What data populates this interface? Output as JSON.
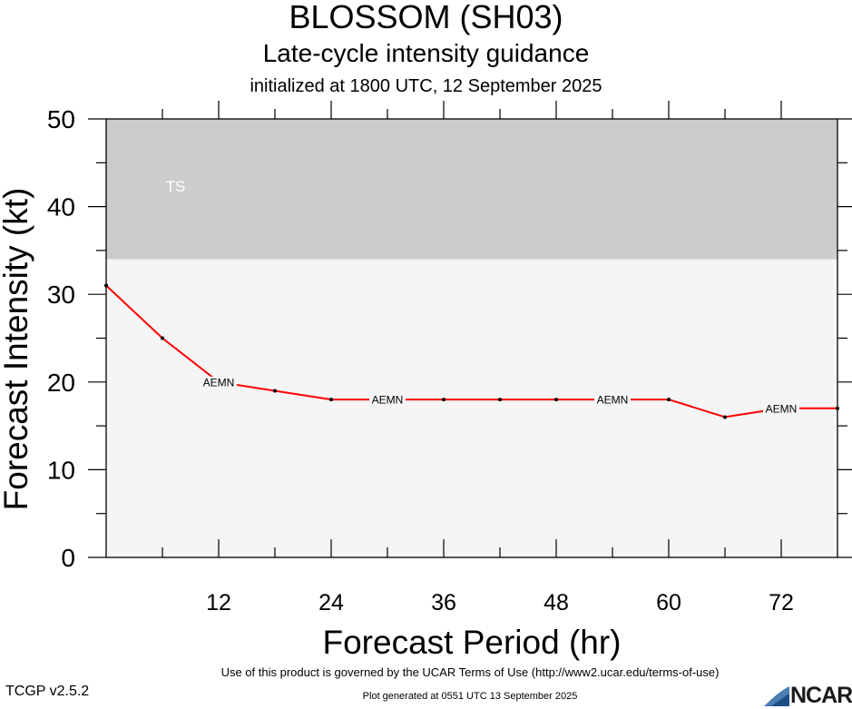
{
  "header": {
    "title": "BLOSSOM (SH03)",
    "subtitle": "Late-cycle intensity guidance",
    "initialized": "initialized at 1800 UTC, 12 September 2025"
  },
  "footer": {
    "terms": "Use of this product is governed by the UCAR Terms of Use (http://www2.ucar.edu/terms-of-use)",
    "generated": "Plot generated at 0551 UTC   13 September 2025",
    "version": "TCGP v2.5.2",
    "logo_text": "NCAR"
  },
  "chart_data": {
    "type": "line",
    "xlabel": "Forecast Period (hr)",
    "ylabel": "Forecast Intensity (kt)",
    "xlim": [
      0,
      78
    ],
    "ylim": [
      0,
      50
    ],
    "x_ticks": [
      12,
      24,
      36,
      48,
      60,
      72
    ],
    "y_ticks": [
      0,
      10,
      20,
      30,
      40,
      50
    ],
    "grid": false,
    "bands": [
      {
        "label": "TS",
        "from": 34,
        "to": 50,
        "color": "#cccccc"
      },
      {
        "label": "",
        "from": 0,
        "to": 34,
        "color": "#f5f5f5"
      }
    ],
    "series": [
      {
        "name": "AEMN",
        "color": "#ff0000",
        "x": [
          0,
          6,
          12,
          18,
          24,
          30,
          36,
          42,
          48,
          54,
          60,
          66,
          72,
          78
        ],
        "values": [
          31,
          25,
          20,
          19,
          18,
          18,
          18,
          18,
          18,
          18,
          18,
          16,
          17,
          17
        ],
        "label_at_x": [
          12,
          30,
          54,
          72
        ]
      }
    ]
  }
}
